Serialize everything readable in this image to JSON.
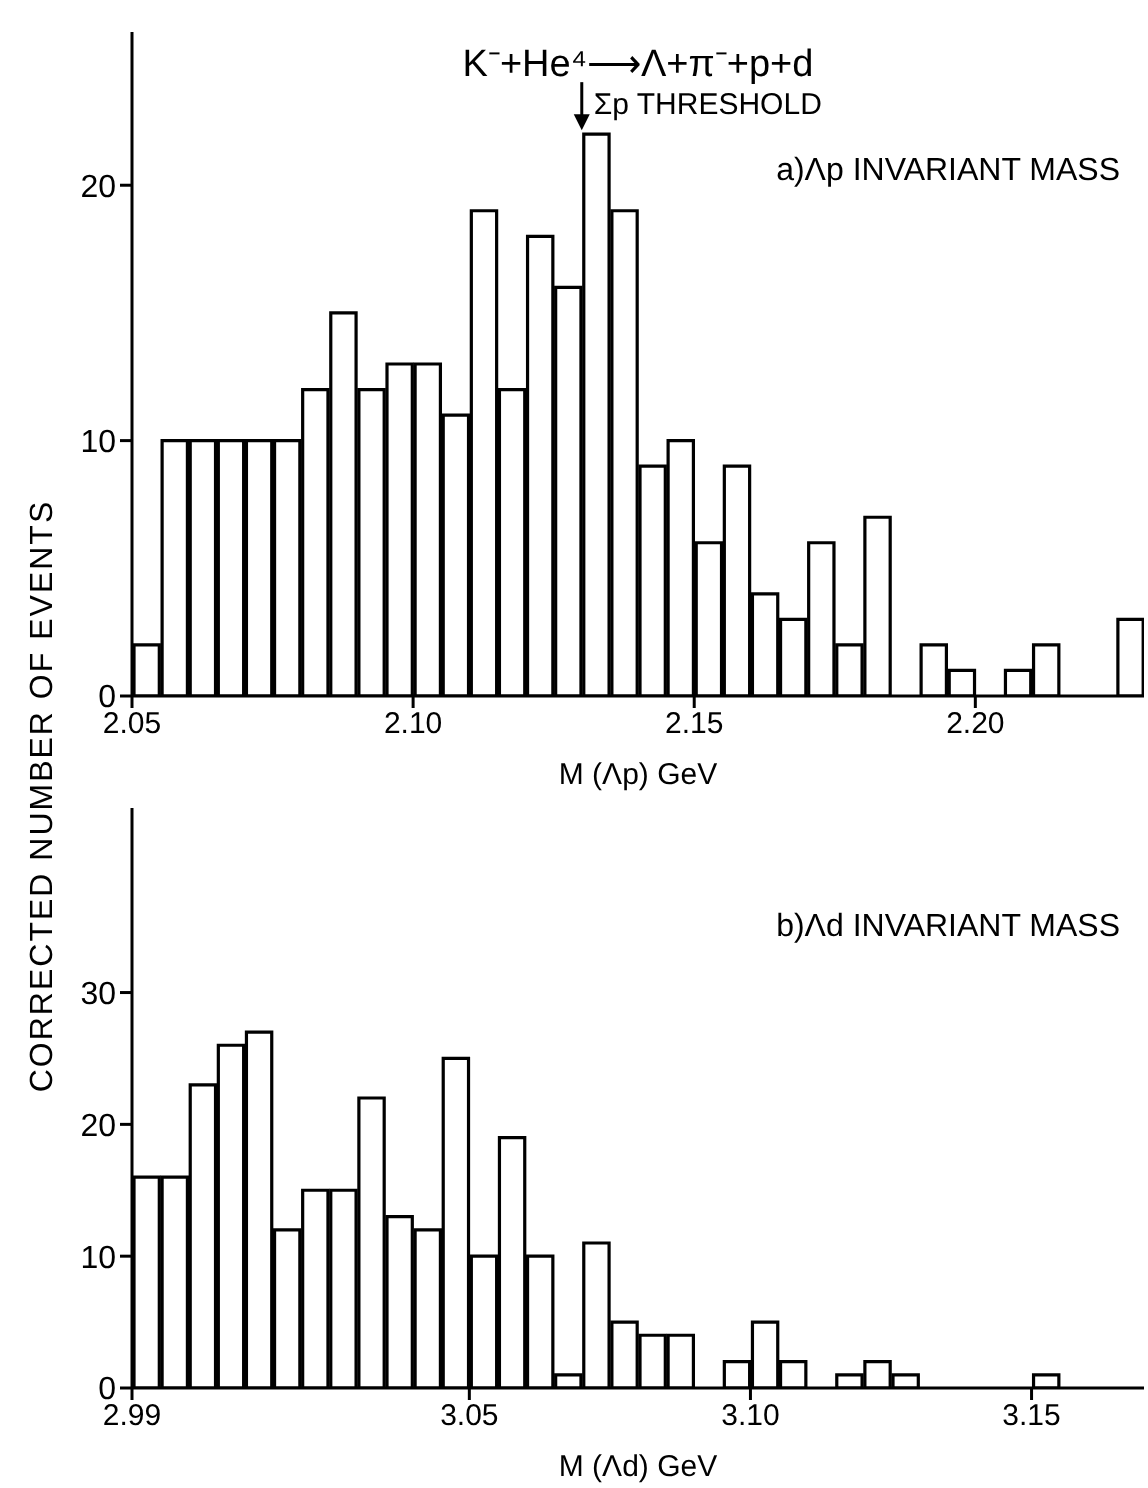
{
  "chart_data": [
    {
      "type": "histogram",
      "title": "K⁻+He⁴⟶Λ+π⁻+p+d",
      "subtitle": "a)Λp INVARIANT MASS",
      "xlabel": "M (Λp) GeV",
      "ylabel": "CORRECTED NUMBER OF EVENTS",
      "color": "#000000",
      "bins": [
        2.05,
        2.055,
        2.06,
        2.065,
        2.07,
        2.075,
        2.08,
        2.085,
        2.09,
        2.095,
        2.1,
        2.105,
        2.11,
        2.115,
        2.12,
        2.125,
        2.13,
        2.135,
        2.14,
        2.145,
        2.15,
        2.155,
        2.16,
        2.165,
        2.17,
        2.175,
        2.18,
        2.185,
        2.19,
        2.195,
        2.2,
        2.205,
        2.21,
        2.215,
        2.22,
        2.225,
        2.23
      ],
      "values": [
        2,
        10,
        10,
        10,
        10,
        10,
        12,
        15,
        12,
        13,
        13,
        11,
        19,
        12,
        18,
        16,
        22,
        19,
        9,
        10,
        6,
        9,
        4,
        3,
        6,
        2,
        7,
        0,
        2,
        1,
        0,
        1,
        2,
        0,
        0,
        3
      ],
      "xlim": [
        2.05,
        2.23
      ],
      "xticks": [
        2.05,
        {
          "value": 2.1,
          "label": "2.10"
        },
        2.15,
        {
          "value": 2.2,
          "label": "2.20"
        }
      ],
      "ylim": [
        0,
        26
      ],
      "yticks": [
        0,
        10,
        20
      ],
      "grid": false,
      "legend": false,
      "annotations": [
        {
          "text": "Σp THRESHOLD",
          "x": 2.13,
          "y": 22
        }
      ]
    },
    {
      "type": "histogram",
      "subtitle": "b)Λd INVARIANT MASS",
      "xlabel": "M (Λd) GeV",
      "color": "#000000",
      "bins": [
        2.99,
        2.995,
        3.0,
        3.005,
        3.01,
        3.015,
        3.02,
        3.025,
        3.03,
        3.035,
        3.04,
        3.045,
        3.05,
        3.055,
        3.06,
        3.065,
        3.07,
        3.075,
        3.08,
        3.085,
        3.09,
        3.095,
        3.1,
        3.105,
        3.11,
        3.115,
        3.12,
        3.125,
        3.13,
        3.135,
        3.14,
        3.145,
        3.15,
        3.155,
        3.16,
        3.165,
        3.17
      ],
      "values": [
        16,
        16,
        23,
        26,
        27,
        12,
        15,
        15,
        22,
        13,
        12,
        25,
        10,
        19,
        10,
        1,
        11,
        5,
        4,
        4,
        0,
        2,
        5,
        2,
        0,
        1,
        2,
        1,
        0,
        0,
        0,
        0,
        1,
        0,
        0,
        0
      ],
      "xlim": [
        2.99,
        3.17
      ],
      "xticks": [
        2.99,
        3.05,
        {
          "value": 3.1,
          "label": "3.10"
        },
        3.15
      ],
      "ylim": [
        0,
        44
      ],
      "yticks": [
        0,
        10,
        20,
        30
      ],
      "grid": false,
      "legend": false
    }
  ]
}
